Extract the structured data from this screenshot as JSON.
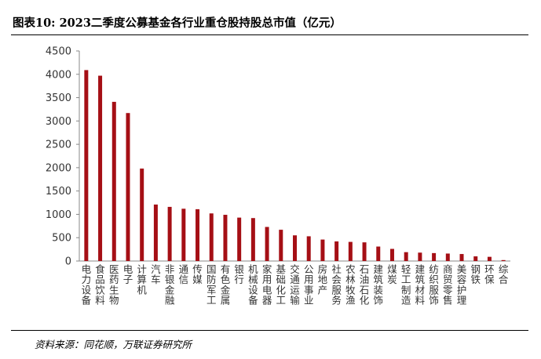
{
  "figure": {
    "title": "图表10:  2023二季度公募基金各行业重仓股持股总市值（亿元）",
    "source": "资料来源：同花顺，万联证券研究所"
  },
  "chart_data": {
    "type": "bar",
    "categories": [
      "电力设备",
      "食品饮料",
      "医药生物",
      "电子",
      "计算机",
      "汽车",
      "非银金融",
      "通信",
      "传媒",
      "国防军工",
      "有色金属",
      "银行",
      "机械设备",
      "家用电器",
      "基础化工",
      "交通运输",
      "公用事业",
      "房地产",
      "社会服务",
      "农林牧渔",
      "石油石化",
      "建筑装饰",
      "煤炭",
      "轻工制造",
      "建筑材料",
      "纺织服饰",
      "商贸零售",
      "美容护理",
      "钢铁",
      "环保",
      "综合"
    ],
    "values": [
      4090,
      3970,
      3410,
      3170,
      1980,
      1210,
      1160,
      1120,
      1110,
      1020,
      990,
      930,
      920,
      730,
      670,
      550,
      530,
      460,
      420,
      410,
      400,
      310,
      260,
      190,
      180,
      170,
      160,
      150,
      100,
      90,
      20
    ],
    "yticks": [
      0,
      500,
      1000,
      1500,
      2000,
      2500,
      3000,
      3500,
      4000,
      4500
    ],
    "ylim": [
      0,
      4500
    ],
    "bar_color": "#a50f15",
    "grid": false,
    "legend": "none"
  }
}
